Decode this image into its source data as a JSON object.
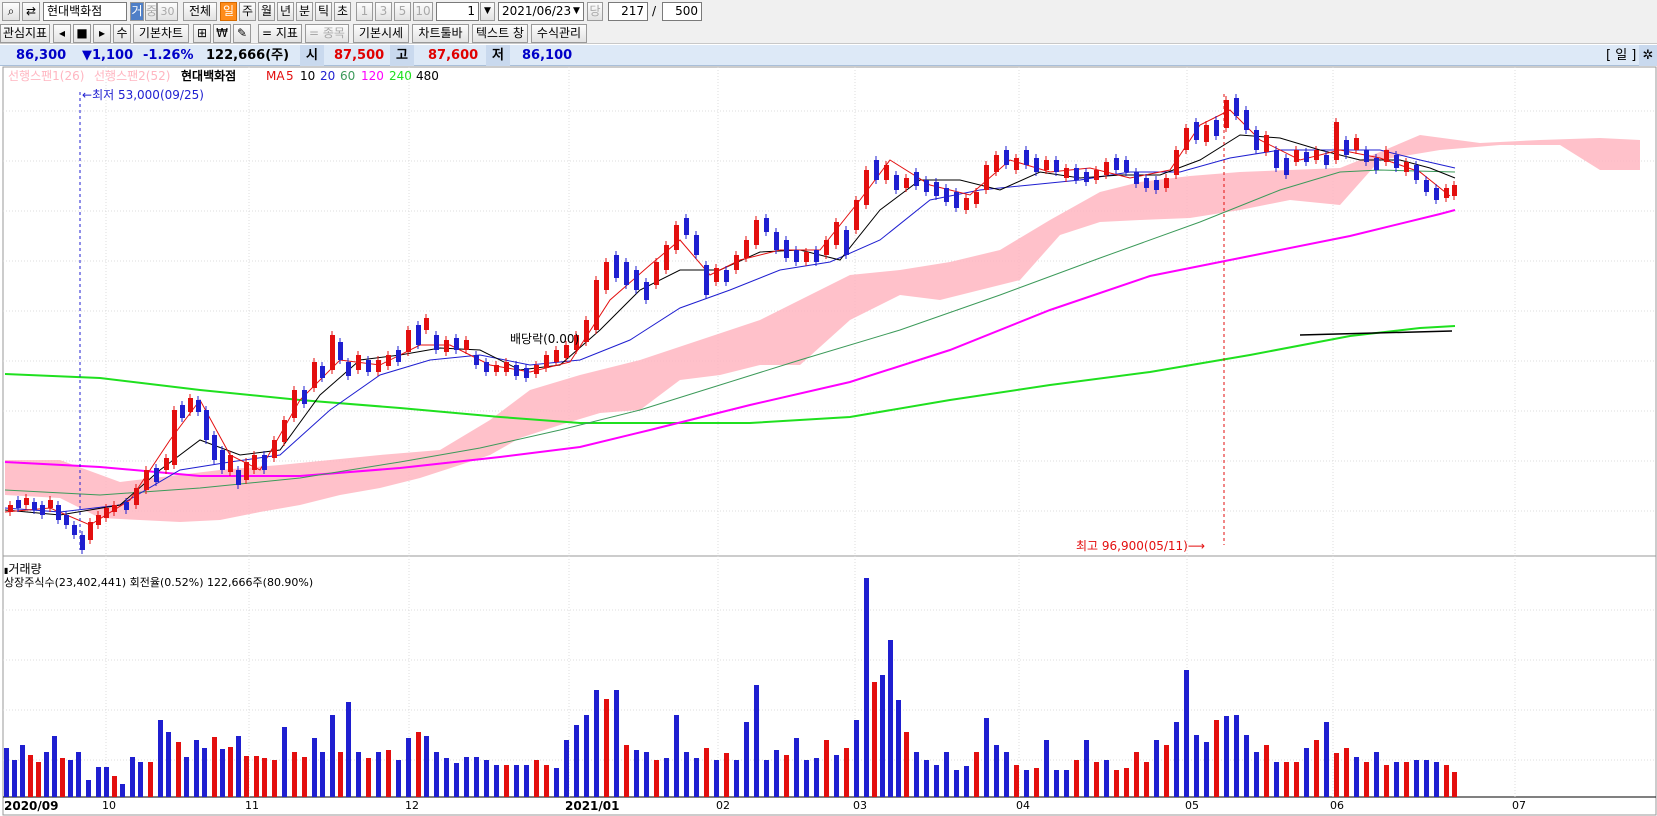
{
  "toolbar": {
    "search_icon": "search-icon",
    "refresh_icon": "refresh-icon",
    "stock_name": "현대백화점",
    "geo_label": "거",
    "jung_label": "중",
    "jung_value": "30",
    "all_label": "전체",
    "period_buttons": [
      "일",
      "주",
      "월",
      "년",
      "분",
      "틱",
      "초"
    ],
    "interval_buttons": [
      "1",
      "3",
      "5",
      "10"
    ],
    "interval_value": "1",
    "date_value": "2021/06/23",
    "dang_label": "당",
    "count_value": "217",
    "slash": "/",
    "total_value": "500"
  },
  "toolbar2": {
    "interest_label": "관심지표",
    "nav_buttons": [
      "◂",
      "■",
      "▸",
      "▸"
    ],
    "su_label": "수",
    "basic_chart_label": "기본차트",
    "pattern_label": "⊞",
    "won_label": "₩",
    "tool_label": "✎",
    "indicator_label": "= 지표",
    "stock_label": "= 종목",
    "basic_quote_label": "기본시세",
    "chart_toolbar_label": "차트툴바",
    "text_window_label": "텍스트 창",
    "formula_label": "수식관리"
  },
  "quote": {
    "price": "86,300",
    "change": "▼1,100",
    "change_pct": "-1.26%",
    "volume": "122,666(주)",
    "open_label": "시",
    "open": "87,500",
    "high_label": "고",
    "high": "87,600",
    "low_label": "저",
    "low": "86,100",
    "day_label": "[ 일 ]",
    "settings_icon": "gear-icon"
  },
  "legend": {
    "span1": "선행스팬1(26)",
    "span2": "선행스팬2(52)",
    "name": "현대백화점",
    "ma_label": "MA",
    "ma_periods": [
      "5",
      "10",
      "20",
      "60",
      "120",
      "240",
      "480"
    ],
    "low_note": "최저 53,000(09/25)",
    "high_note": "최고 96,900(05/11)",
    "dividend_note": "배당락(0.00)",
    "volume_title": "거래량",
    "volume_info": "상장주식수(23,402,441) 회전율(0.52%) 122,666주(80.90%)"
  },
  "axis": {
    "x_labels": [
      "2020/09",
      "10",
      "11",
      "12",
      "2021/01",
      "02",
      "03",
      "04",
      "05",
      "06",
      "07"
    ]
  },
  "colors": {
    "up": "#e30f0f",
    "down": "#1f1fd0",
    "ma5": "#e30f0f",
    "ma10": "#000000",
    "ma20": "#1f1fd0",
    "ma60": "#3c9a5a",
    "ma120": "#ff00ff",
    "ma240": "#1fe01f",
    "cloud": "#ffb6c1"
  }
}
